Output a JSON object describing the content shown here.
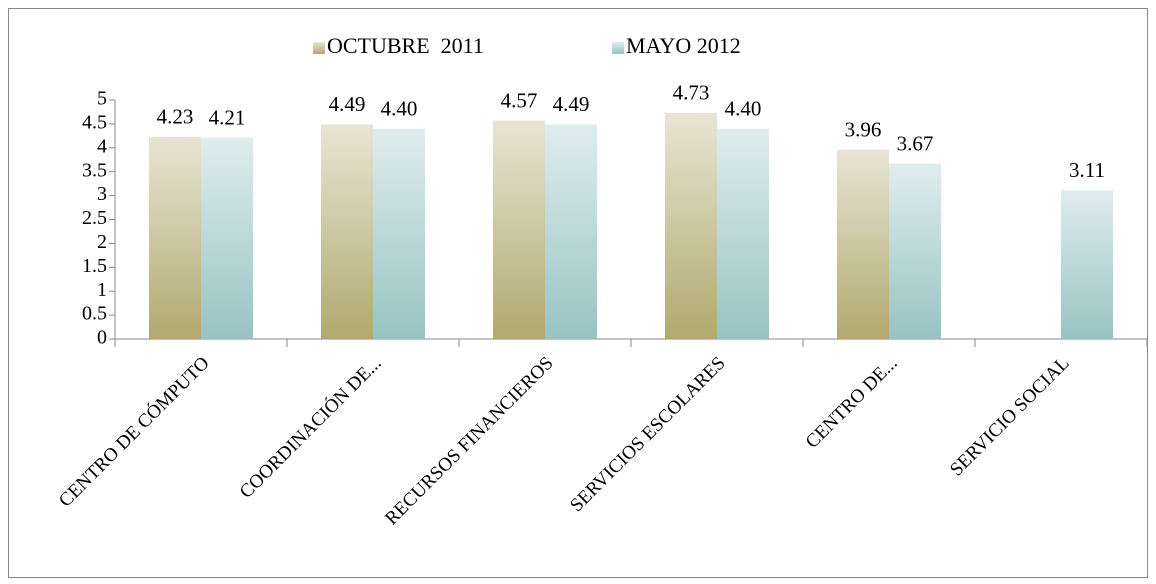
{
  "chart_data": {
    "type": "bar",
    "categories": [
      "CENTRO DE CÓMPUTO",
      "COORDINACIÓN DE...",
      "RECURSOS FINANCIEROS",
      "SERVICIOS ESCOLARES",
      "CENTRO DE...",
      "SERVICIO SOCIAL"
    ],
    "series": [
      {
        "name": "OCTUBRE  2011",
        "color": "#b1a96f",
        "values": [
          4.23,
          4.49,
          4.57,
          4.73,
          3.96,
          null
        ],
        "value_labels": [
          "4.23",
          "4.49",
          "4.57",
          "4.73",
          "3.96",
          null
        ]
      },
      {
        "name": "MAYO 2012",
        "color": "#98c3c3",
        "values": [
          4.21,
          4.4,
          4.49,
          4.4,
          3.67,
          3.11
        ],
        "value_labels": [
          "4.21",
          "4.40",
          "4.49",
          "4.40",
          "3.67",
          "3.11"
        ]
      }
    ],
    "ylim": [
      0,
      5
    ],
    "yticks": [
      0,
      0.5,
      1,
      1.5,
      2,
      2.5,
      3,
      3.5,
      4,
      4.5,
      5
    ],
    "legend": "top",
    "grid": false
  }
}
